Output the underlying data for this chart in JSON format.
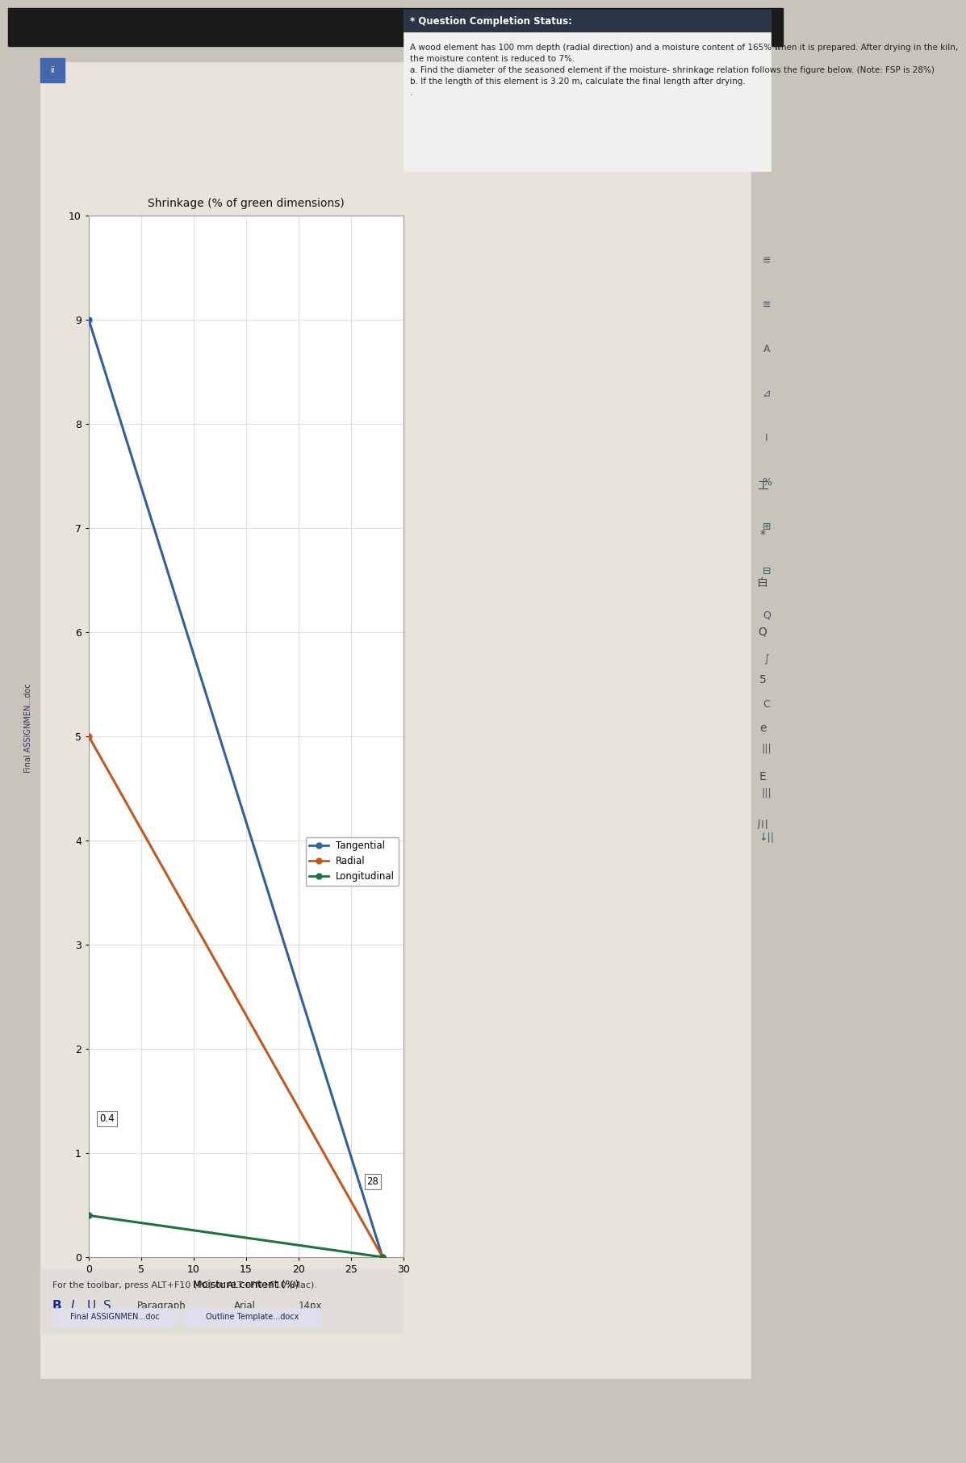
{
  "title": "Shrinkage (% of green dimensions)",
  "xlabel": "Moisture content (%)",
  "xlim": [
    0,
    30
  ],
  "ylim": [
    0,
    10
  ],
  "xticks": [
    0,
    5,
    10,
    15,
    20,
    25,
    30
  ],
  "yticks": [
    0,
    1,
    2,
    3,
    4,
    5,
    6,
    7,
    8,
    9,
    10
  ],
  "tangential": {
    "x": [
      0,
      28
    ],
    "y": [
      9.0,
      0
    ],
    "color": "#3060a0",
    "label": "Tangential"
  },
  "radial": {
    "x": [
      0,
      28
    ],
    "y": [
      5.0,
      0
    ],
    "color": "#c05820",
    "label": "Radial"
  },
  "longitudinal": {
    "x": [
      0,
      28
    ],
    "y": [
      0.4,
      0
    ],
    "color": "#207040",
    "label": "Longitudinal"
  },
  "fsp_x": 28,
  "ann_fsp": "28",
  "ann_04": "0.4",
  "question_header": "* Question Completion Status:",
  "problem_text_lines": [
    "A wood element has 100 mm depth (radial direction) and a moisture content of 165% when it is prepared. After drying in the kiln, the moisture content is reduced to 7%.",
    "a. Find the diameter of the seasoned element if the moisture- shrinkage relation follows the figure below. (Note: FSP is 28%)",
    "b. If the length of this element is 3.20 m, calculate the final length after drying.",
    "."
  ],
  "toolbar_text": "For the toolbar, press ALT+F10 (PC) or ALT+FN+F10 (Mac).",
  "file1": "Final ASSIGNMEN...doc",
  "file2": "Outline Template...docx",
  "bg_outer": "#c8c4bc",
  "bg_doc": "#e8e4dc",
  "bg_white": "#f8f8f8",
  "bg_chart": "#ffffff",
  "header_dark": "#2a3545",
  "text_dark": "#222222",
  "text_blue": "#1a2a8a"
}
